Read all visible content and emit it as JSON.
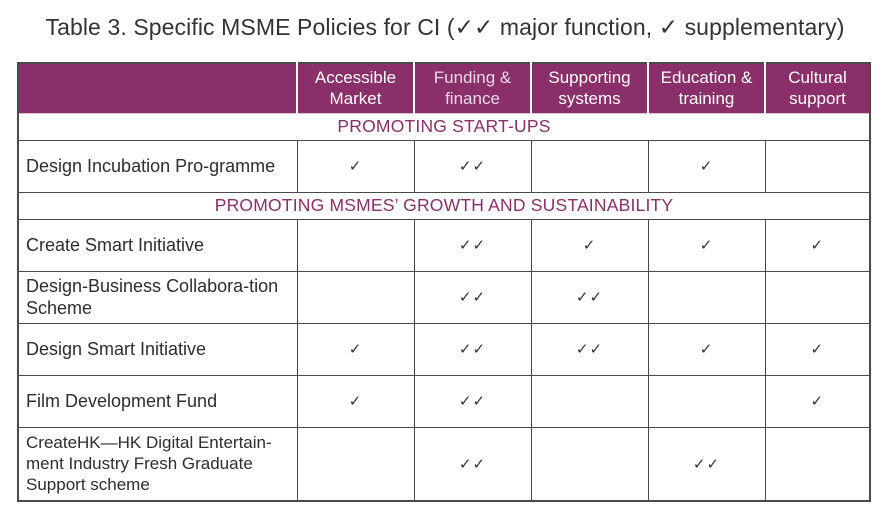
{
  "title": "Table 3. Specific MSME Policies for CI (✓✓ major function, ✓ supplementary)",
  "colors": {
    "header_bg": "#8a2f69",
    "section_text": "#8a2f69",
    "border": "#4a4a4a"
  },
  "columns": [
    "Accessible Market",
    "Funding & finance",
    "Supporting systems",
    "Education & training",
    "Cultural support"
  ],
  "sections": [
    {
      "label": "PROMOTING START-UPS",
      "rows": [
        {
          "name": "Design Incubation Pro-gramme",
          "cells": [
            "✓",
            "✓✓",
            "",
            "✓",
            ""
          ]
        }
      ]
    },
    {
      "label": "PROMOTING MSMES’ GROWTH AND SUSTAINABILITY",
      "rows": [
        {
          "name": "Create Smart Initiative",
          "cells": [
            "",
            "✓✓",
            "✓",
            "✓",
            "✓"
          ]
        },
        {
          "name": "Design-Business Collabora-tion Scheme",
          "cells": [
            "",
            "✓✓",
            "✓✓",
            "",
            ""
          ]
        },
        {
          "name": "Design Smart Initiative",
          "cells": [
            "✓",
            "✓✓",
            "✓✓",
            "✓",
            "✓"
          ]
        },
        {
          "name": "Film Development Fund",
          "cells": [
            "✓",
            "✓✓",
            "",
            "",
            "✓"
          ]
        },
        {
          "name": "CreateHK—HK Digital Entertain-ment Industry Fresh Graduate Support scheme",
          "cells": [
            "",
            "✓✓",
            "",
            "✓✓",
            ""
          ]
        }
      ]
    }
  ]
}
